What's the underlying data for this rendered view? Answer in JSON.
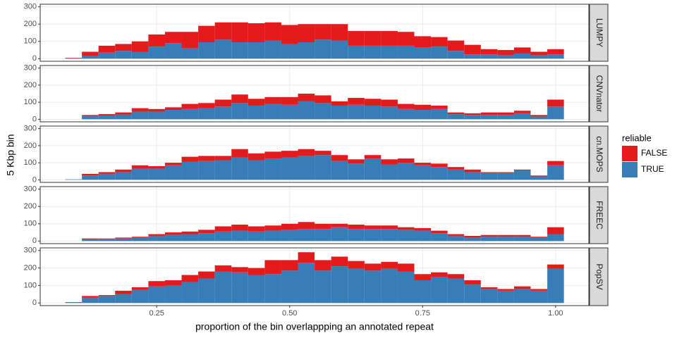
{
  "chart_data": {
    "type": "histogram",
    "xlabel": "proportion of the bin overlappping an annotated repeat",
    "ylabel": "5 Kbp bin",
    "legend_title": "reliable",
    "legend": "right",
    "grid": true,
    "bins": [
      0.078125,
      0.109375,
      0.140625,
      0.171875,
      0.203125,
      0.234375,
      0.265625,
      0.296875,
      0.328125,
      0.359375,
      0.390625,
      0.421875,
      0.453125,
      0.484375,
      0.515625,
      0.546875,
      0.578125,
      0.609375,
      0.640625,
      0.671875,
      0.703125,
      0.734375,
      0.765625,
      0.796875,
      0.828125,
      0.859375,
      0.890625,
      0.921875,
      0.953125,
      0.984375,
      1.015625
    ],
    "xlim": [
      0.031,
      1.0625
    ],
    "xticks": [
      0.25,
      {
        "value": 0.5,
        "label": "0.50"
      },
      0.75,
      {
        "value": 1.0,
        "label": "1.00"
      }
    ],
    "ylim": [
      -15,
      315
    ],
    "yticks": [
      0,
      100,
      200,
      300
    ],
    "series": [
      {
        "name": "FALSE",
        "color": "#e41a1c"
      },
      {
        "name": "TRUE",
        "color": "#377eb8"
      }
    ],
    "facets": [
      {
        "label": "LUMPY",
        "series": [
          {
            "values": [
              2,
              25,
              40,
              40,
              60,
              70,
              65,
              95,
              95,
              100,
              115,
              110,
              105,
              110,
              105,
              90,
              95,
              85,
              85,
              85,
              80,
              65,
              55,
              60,
              55,
              30,
              30,
              35,
              20,
              30
            ]
          },
          {
            "values": [
              3,
              15,
              35,
              45,
              40,
              70,
              90,
              60,
              95,
              110,
              95,
              95,
              105,
              85,
              95,
              110,
              105,
              75,
              75,
              75,
              75,
              65,
              70,
              45,
              25,
              25,
              20,
              30,
              20,
              25
            ]
          }
        ]
      },
      {
        "label": "CNVnator",
        "series": [
          {
            "values": [
              0,
              5,
              8,
              12,
              20,
              15,
              15,
              30,
              30,
              40,
              50,
              40,
              40,
              45,
              45,
              45,
              25,
              40,
              40,
              40,
              30,
              30,
              20,
              10,
              10,
              15,
              15,
              15,
              10,
              40
            ]
          },
          {
            "values": [
              0,
              20,
              22,
              28,
              45,
              45,
              55,
              60,
              65,
              75,
              95,
              80,
              90,
              85,
              105,
              95,
              80,
              85,
              80,
              75,
              60,
              55,
              60,
              30,
              25,
              25,
              25,
              35,
              15,
              75
            ]
          }
        ]
      },
      {
        "label": "cn.MOPS",
        "series": [
          {
            "values": [
              0,
              10,
              10,
              15,
              20,
              15,
              15,
              30,
              30,
              25,
              50,
              40,
              40,
              40,
              40,
              25,
              35,
              25,
              20,
              30,
              25,
              15,
              20,
              15,
              15,
              5,
              5,
              5,
              5,
              25
            ]
          },
          {
            "values": [
              3,
              25,
              35,
              45,
              65,
              65,
              85,
              105,
              110,
              115,
              130,
              115,
              125,
              130,
              140,
              145,
              110,
              95,
              125,
              90,
              100,
              85,
              75,
              60,
              45,
              40,
              40,
              55,
              20,
              85
            ]
          }
        ]
      },
      {
        "label": "FREEC",
        "series": [
          {
            "values": [
              0,
              5,
              3,
              5,
              5,
              10,
              15,
              15,
              20,
              30,
              35,
              30,
              30,
              35,
              40,
              30,
              20,
              25,
              20,
              20,
              15,
              15,
              15,
              10,
              10,
              10,
              10,
              10,
              5,
              40
            ]
          },
          {
            "values": [
              0,
              10,
              12,
              15,
              20,
              30,
              35,
              40,
              45,
              55,
              60,
              55,
              60,
              65,
              70,
              70,
              80,
              70,
              70,
              70,
              65,
              60,
              45,
              30,
              20,
              25,
              25,
              25,
              20,
              40
            ]
          }
        ]
      },
      {
        "label": "PopSV",
        "series": [
          {
            "values": [
              2,
              10,
              5,
              20,
              15,
              30,
              30,
              40,
              40,
              35,
              30,
              40,
              80,
              60,
              60,
              60,
              55,
              45,
              40,
              40,
              45,
              35,
              25,
              25,
              25,
              10,
              10,
              15,
              10,
              25
            ]
          },
          {
            "values": [
              3,
              30,
              40,
              50,
              75,
              95,
              100,
              120,
              140,
              180,
              175,
              160,
              165,
              185,
              230,
              185,
              210,
              195,
              185,
              195,
              180,
              130,
              150,
              140,
              105,
              80,
              70,
              80,
              70,
              195
            ]
          }
        ]
      }
    ]
  }
}
